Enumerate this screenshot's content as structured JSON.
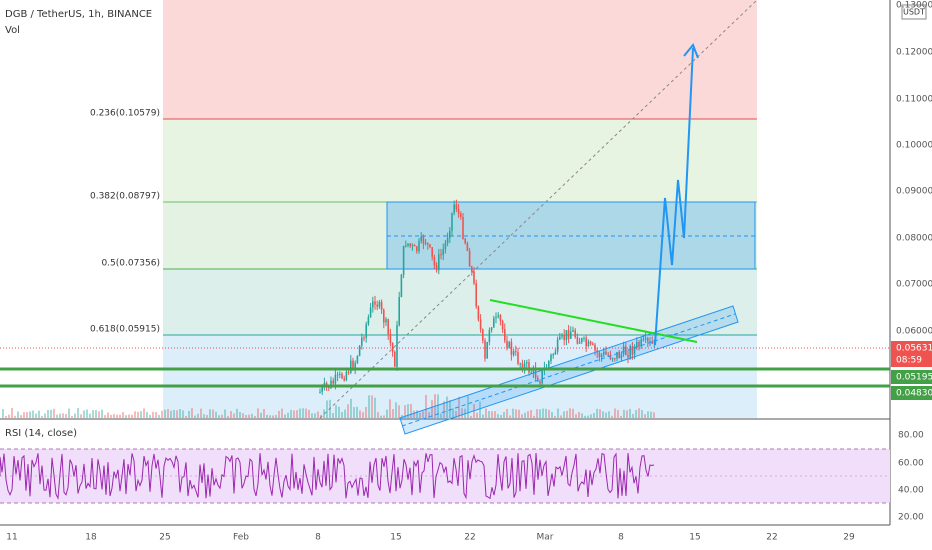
{
  "header": {
    "symbol": "DGB / TetherUS, 1h, BINANCE",
    "volume": "Vol",
    "currency": "USDT"
  },
  "fib_levels": [
    "0.236(0.10579)",
    "0.382(0.08797)",
    "0.5(0.07356)",
    "0.618(0.05915)"
  ],
  "price_axis": [
    "0.13000",
    "0.12000",
    "0.11000",
    "0.10000",
    "0.09000",
    "0.08000",
    "0.07000",
    "0.06000"
  ],
  "price_badges": {
    "last": "0.05631",
    "countdown": "08:59",
    "support_1": "0.05195",
    "support_2": "0.04830"
  },
  "date_axis": [
    "11",
    "18",
    "25",
    "Feb",
    "8",
    "15",
    "22",
    "Mar",
    "8",
    "15",
    "22",
    "29"
  ],
  "rsi": {
    "title": "RSI (14, close)",
    "axis": [
      "80.00",
      "60.00",
      "40.00",
      "20.00"
    ]
  }
}
